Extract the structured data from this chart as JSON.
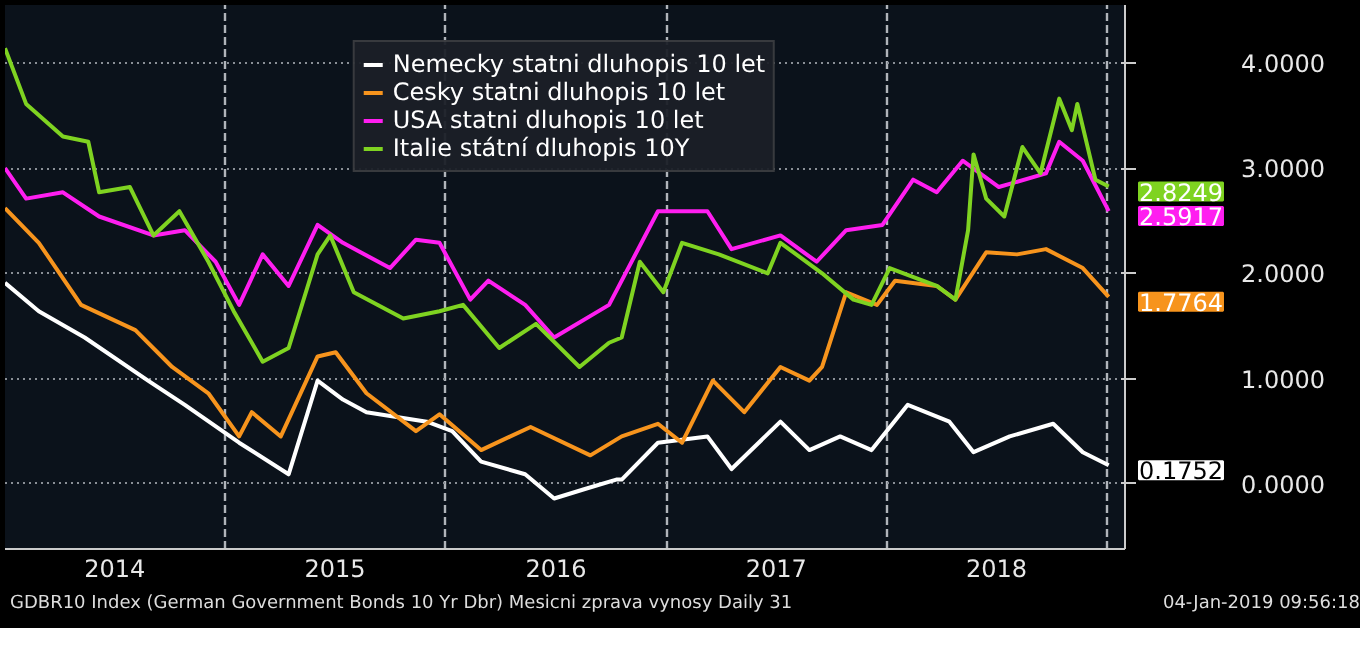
{
  "chart_data": {
    "type": "line",
    "series": [
      {
        "name": "Nemecky statni dluhopis 10 let",
        "color": "#ffffff",
        "x": [
          "2014-01-01",
          "2014-02-26",
          "2014-05-13",
          "2014-08-26",
          "2014-10-26",
          "2015-01-24",
          "2015-04-16",
          "2015-06-03",
          "2015-07-15",
          "2015-08-23",
          "2015-12-01",
          "2016-01-12",
          "2016-02-29",
          "2016-05-12",
          "2016-06-29",
          "2016-08-19",
          "2016-10-10",
          "2016-10-19",
          "2016-12-18",
          "2017-03-10",
          "2017-04-19",
          "2017-07-09",
          "2017-08-26",
          "2017-10-16",
          "2017-12-07",
          "2018-02-05",
          "2018-04-15",
          "2018-05-25",
          "2018-07-24",
          "2018-10-04",
          "2018-11-22",
          "2019-01-04"
        ],
        "values": [
          1.91,
          1.64,
          1.39,
          0.98,
          0.75,
          0.39,
          0.09,
          0.98,
          0.8,
          0.68,
          0.59,
          0.5,
          0.21,
          0.09,
          -0.14,
          -0.05,
          0.04,
          0.04,
          0.39,
          0.45,
          0.14,
          0.59,
          0.32,
          0.45,
          0.32,
          0.75,
          0.59,
          0.3,
          0.45,
          0.57,
          0.3,
          0.1752
        ],
        "value_labels": [
          null,
          null,
          null,
          null,
          null,
          null,
          null,
          null,
          null,
          null,
          null,
          null,
          null,
          null,
          null,
          null,
          null,
          null,
          null,
          null,
          null,
          null,
          null,
          null,
          null,
          null,
          null,
          null,
          null,
          null,
          null,
          "0.1752"
        ]
      },
      {
        "name": "Cesky statni dluhopis 10 let",
        "color": "#f7941d",
        "x": [
          "2014-01-01",
          "2014-02-26",
          "2014-05-07",
          "2014-08-05",
          "2014-10-05",
          "2014-12-04",
          "2015-01-24",
          "2015-02-14",
          "2015-04-03",
          "2015-06-03",
          "2015-07-03",
          "2015-08-23",
          "2015-11-13",
          "2015-12-22",
          "2016-02-29",
          "2016-05-21",
          "2016-08-28",
          "2016-10-19",
          "2016-12-18",
          "2017-01-27",
          "2017-03-19",
          "2017-05-10",
          "2017-07-09",
          "2017-08-26",
          "2017-09-16",
          "2017-10-26",
          "2017-12-16",
          "2018-01-15",
          "2018-03-25",
          "2018-04-25",
          "2018-06-15",
          "2018-08-05",
          "2018-09-22",
          "2018-11-22",
          "2019-01-04"
        ],
        "values": [
          2.62,
          2.29,
          1.7,
          1.46,
          1.11,
          0.86,
          0.45,
          0.68,
          0.45,
          1.21,
          1.25,
          0.86,
          0.5,
          0.66,
          0.32,
          0.54,
          0.27,
          0.45,
          0.57,
          0.39,
          0.98,
          0.68,
          1.11,
          0.98,
          1.11,
          1.82,
          1.7,
          1.93,
          1.88,
          1.75,
          2.2,
          2.18,
          2.23,
          2.05,
          1.7764
        ],
        "value_labels": [
          null,
          null,
          null,
          null,
          null,
          null,
          null,
          null,
          null,
          null,
          null,
          null,
          null,
          null,
          null,
          null,
          null,
          null,
          null,
          null,
          null,
          null,
          null,
          null,
          null,
          null,
          null,
          null,
          null,
          null,
          null,
          null,
          null,
          null,
          "1.7764"
        ]
      },
      {
        "name": "USA statni dluhopis 10 let",
        "color": "#ff1ef0",
        "x": [
          "2014-01-01",
          "2014-02-05",
          "2014-04-07",
          "2014-06-06",
          "2014-09-04",
          "2014-10-26",
          "2014-12-16",
          "2015-01-24",
          "2015-03-04",
          "2015-04-16",
          "2015-06-03",
          "2015-07-15",
          "2015-10-01",
          "2015-11-13",
          "2015-12-22",
          "2016-02-11",
          "2016-03-12",
          "2016-05-12",
          "2016-06-29",
          "2016-09-28",
          "2016-12-18",
          "2017-03-10",
          "2017-04-19",
          "2017-07-09",
          "2017-09-07",
          "2017-10-26",
          "2017-12-25",
          "2018-02-14",
          "2018-03-25",
          "2018-05-07",
          "2018-07-06",
          "2018-09-22",
          "2018-10-14",
          "2018-11-22",
          "2019-01-04"
        ],
        "values": [
          3.0,
          2.71,
          2.77,
          2.54,
          2.36,
          2.41,
          2.11,
          1.7,
          2.18,
          1.88,
          2.46,
          2.29,
          2.05,
          2.32,
          2.29,
          1.75,
          1.93,
          1.7,
          1.39,
          1.7,
          2.59,
          2.59,
          2.23,
          2.36,
          2.11,
          2.41,
          2.46,
          2.89,
          2.77,
          3.07,
          2.82,
          2.95,
          3.25,
          3.07,
          2.5917
        ],
        "value_labels": [
          null,
          null,
          null,
          null,
          null,
          null,
          null,
          null,
          null,
          null,
          null,
          null,
          null,
          null,
          null,
          null,
          null,
          null,
          null,
          null,
          null,
          null,
          null,
          null,
          null,
          null,
          null,
          null,
          null,
          null,
          null,
          null,
          null,
          null,
          "2.5917"
        ]
      },
      {
        "name": "Italie státní dluhopis 10Y",
        "color": "#7fd321",
        "x": [
          "2014-01-01",
          "2014-02-05",
          "2014-04-07",
          "2014-05-19",
          "2014-06-06",
          "2014-07-27",
          "2014-09-04",
          "2014-10-17",
          "2014-12-04",
          "2015-01-15",
          "2015-03-04",
          "2015-04-16",
          "2015-06-03",
          "2015-06-24",
          "2015-08-02",
          "2015-10-23",
          "2015-12-22",
          "2016-01-30",
          "2016-03-30",
          "2016-05-30",
          "2016-08-10",
          "2016-09-28",
          "2016-10-19",
          "2016-11-18",
          "2016-12-27",
          "2017-01-27",
          "2017-03-29",
          "2017-06-18",
          "2017-07-09",
          "2017-09-16",
          "2017-11-07",
          "2017-12-07",
          "2018-01-06",
          "2018-03-25",
          "2018-04-25",
          "2018-05-16",
          "2018-05-25",
          "2018-06-15",
          "2018-07-15",
          "2018-08-14",
          "2018-09-13",
          "2018-10-14",
          "2018-11-04",
          "2018-11-13",
          "2018-12-13",
          "2019-01-04"
        ],
        "values": [
          4.14,
          3.61,
          3.3,
          3.25,
          2.77,
          2.82,
          2.36,
          2.59,
          2.11,
          1.64,
          1.16,
          1.29,
          2.18,
          2.36,
          1.82,
          1.57,
          1.64,
          1.7,
          1.29,
          1.52,
          1.11,
          1.34,
          1.39,
          2.11,
          1.82,
          2.29,
          2.18,
          2.0,
          2.29,
          2.0,
          1.75,
          1.7,
          2.05,
          1.88,
          1.75,
          2.41,
          3.13,
          2.71,
          2.54,
          3.2,
          2.95,
          3.66,
          3.36,
          3.61,
          2.89,
          2.8249
        ],
        "value_labels": [
          null,
          null,
          null,
          null,
          null,
          null,
          null,
          null,
          null,
          null,
          null,
          null,
          null,
          null,
          null,
          null,
          null,
          null,
          null,
          null,
          null,
          null,
          null,
          null,
          null,
          null,
          null,
          null,
          null,
          null,
          null,
          null,
          null,
          null,
          null,
          null,
          null,
          null,
          null,
          null,
          null,
          null,
          null,
          null,
          null,
          "2.8249"
        ]
      }
    ],
    "xlim": [
      "2014-01-01",
      "2019-01-31"
    ],
    "xticks": [
      {
        "value": "2014-01-01",
        "label": null
      },
      {
        "value": "2014-07-02",
        "label": "2014"
      },
      {
        "value": "2015-01-01",
        "label": null
      },
      {
        "value": "2015-07-02",
        "label": "2015"
      },
      {
        "value": "2016-01-01",
        "label": null
      },
      {
        "value": "2016-07-02",
        "label": "2016"
      },
      {
        "value": "2017-01-01",
        "label": null
      },
      {
        "value": "2017-07-02",
        "label": "2017"
      },
      {
        "value": "2018-01-01",
        "label": null
      },
      {
        "value": "2018-07-02",
        "label": "2018"
      },
      {
        "value": "2019-01-01",
        "label": null
      }
    ],
    "ylim": [
      -0.62,
      4.55
    ],
    "yticks": [
      {
        "value": 0,
        "label": "0.0000"
      },
      {
        "value": 1,
        "label": "1.0000"
      },
      {
        "value": 2,
        "label": "2.0000"
      },
      {
        "value": 3,
        "label": "3.0000"
      },
      {
        "value": 4,
        "label": "4.0000"
      }
    ],
    "grid": true,
    "legend": "top",
    "annotations": [
      "GDBR10 Index (German Government Bonds 10 Yr Dbr) Mesicni zprava vynosy  Daily 31",
      "04-Jan-2019 09:56:18"
    ]
  }
}
